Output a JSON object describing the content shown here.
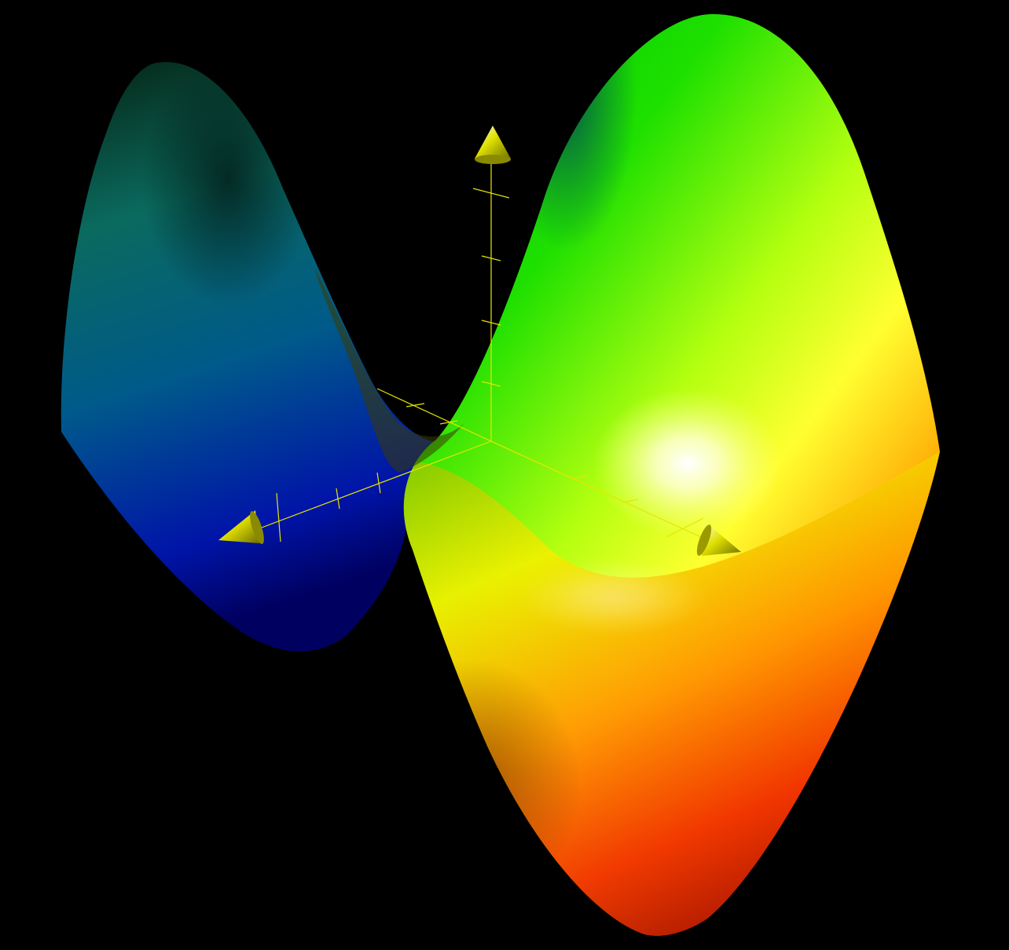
{
  "chart_data": {
    "type": "surface",
    "surface": "saddle",
    "colormap": [
      "#0000b4",
      "#008080",
      "#00e000",
      "#ffff00",
      "#ff8000",
      "#ff2000"
    ],
    "axes": {
      "count": 3,
      "color": "#e6e600",
      "arrowheads": "cone",
      "tick_marks": true
    },
    "grid": false,
    "legend": "none"
  }
}
